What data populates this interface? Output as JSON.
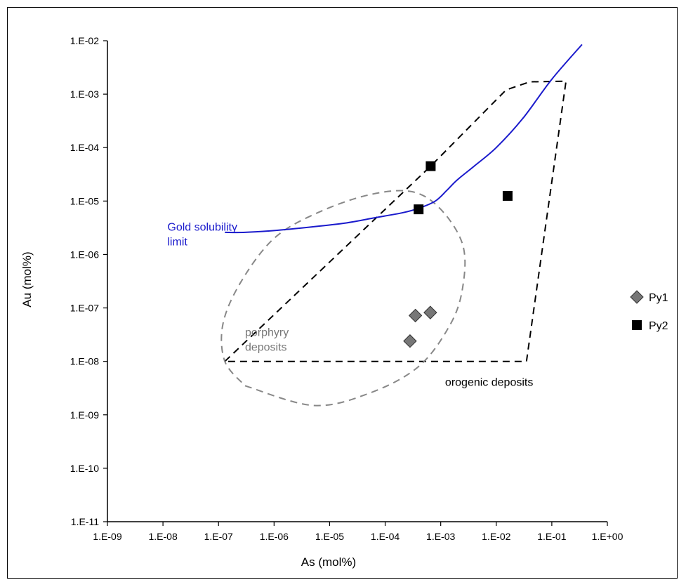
{
  "chart_data": {
    "type": "scatter",
    "title": "",
    "xlabel": "As (mol%)",
    "ylabel": "Au (mol%)",
    "x_scale": "log",
    "y_scale": "log",
    "xlim": [
      1e-09,
      1
    ],
    "ylim": [
      1e-11,
      0.01
    ],
    "grid": false,
    "legend_position": "right",
    "x_ticks": [
      {
        "value": 1e-09,
        "label": "1.E-09"
      },
      {
        "value": 1e-08,
        "label": "1.E-08"
      },
      {
        "value": 1e-07,
        "label": "1.E-07"
      },
      {
        "value": 1e-06,
        "label": "1.E-06"
      },
      {
        "value": 1e-05,
        "label": "1.E-05"
      },
      {
        "value": 0.0001,
        "label": "1.E-04"
      },
      {
        "value": 0.001,
        "label": "1.E-03"
      },
      {
        "value": 0.01,
        "label": "1.E-02"
      },
      {
        "value": 0.1,
        "label": "1.E-01"
      },
      {
        "value": 1,
        "label": "1.E+00"
      }
    ],
    "y_ticks": [
      {
        "value": 1e-11,
        "label": "1.E-11"
      },
      {
        "value": 1e-10,
        "label": "1.E-10"
      },
      {
        "value": 1e-09,
        "label": "1.E-09"
      },
      {
        "value": 1e-08,
        "label": "1.E-08"
      },
      {
        "value": 1e-07,
        "label": "1.E-07"
      },
      {
        "value": 1e-06,
        "label": "1.E-06"
      },
      {
        "value": 1e-05,
        "label": "1.E-05"
      },
      {
        "value": 0.0001,
        "label": "1.E-04"
      },
      {
        "value": 0.001,
        "label": "1.E-03"
      },
      {
        "value": 0.01,
        "label": "1.E-02"
      }
    ],
    "series": [
      {
        "name": "Py1",
        "marker": "diamond",
        "color": "#777777",
        "points": [
          {
            "x": 0.00035,
            "y": 7.2e-08
          },
          {
            "x": 0.00065,
            "y": 8.2e-08
          },
          {
            "x": 0.00028,
            "y": 2.4e-08
          }
        ]
      },
      {
        "name": "Py2",
        "marker": "square",
        "color": "#000000",
        "points": [
          {
            "x": 0.00066,
            "y": 4.5e-05
          },
          {
            "x": 0.0004,
            "y": 7e-06
          },
          {
            "x": 0.016,
            "y": 1.25e-05
          }
        ]
      }
    ],
    "curves": [
      {
        "label": "Gold solubility limit",
        "color": "#1a1acc",
        "points": [
          [
            1.3e-07,
            2.6e-06
          ],
          [
            3e-07,
            2.6e-06
          ],
          [
            1e-06,
            2.8e-06
          ],
          [
            5e-06,
            3.3e-06
          ],
          [
            2e-05,
            3.9e-06
          ],
          [
            6e-05,
            4.8e-06
          ],
          [
            0.0002,
            6e-06
          ],
          [
            0.0004,
            7.3e-06
          ],
          [
            0.0008,
            1e-05
          ],
          [
            0.0013,
            1.6e-05
          ],
          [
            0.002,
            2.5e-05
          ],
          [
            0.004,
            4.5e-05
          ],
          [
            0.01,
            0.0001
          ],
          [
            0.03,
            0.00035
          ],
          [
            0.1,
            0.0019
          ],
          [
            0.35,
            0.0085
          ]
        ]
      }
    ],
    "regions": [
      {
        "label": "orogenic deposits",
        "color": "#000000",
        "points": [
          [
            1.3e-07,
            1e-08
          ],
          [
            0.00066,
            4.5e-05
          ],
          [
            0.015,
            0.0012
          ],
          [
            0.04,
            0.0017
          ],
          [
            0.18,
            0.00175
          ],
          [
            0.035,
            1e-08
          ],
          [
            1.3e-07,
            1e-08
          ]
        ]
      },
      {
        "label": "porphyry deposits",
        "color": "#888888",
        "points": [
          [
            3e-07,
            3.5e-09
          ],
          [
            5e-06,
            1.5e-09
          ],
          [
            5e-05,
            2.5e-09
          ],
          [
            0.0004,
            8e-09
          ],
          [
            0.0015,
            5e-08
          ],
          [
            0.0025,
            2.5e-07
          ],
          [
            0.0025,
            1.5e-06
          ],
          [
            0.001,
            7e-06
          ],
          [
            0.0003,
            1.5e-05
          ],
          [
            5e-05,
            1.3e-05
          ],
          [
            6e-06,
            6e-06
          ],
          [
            1e-06,
            2e-06
          ],
          [
            2.5e-07,
            3e-07
          ],
          [
            1.2e-07,
            5e-08
          ],
          [
            1.3e-07,
            1e-08
          ],
          [
            3e-07,
            3.5e-09
          ]
        ]
      }
    ],
    "annotations": [
      {
        "text": "Gold solubility limit",
        "lines": [
          "Gold solubility",
          "limit"
        ],
        "color": "#1a1acc",
        "x": 1.2e-08,
        "y": 2.8e-06
      },
      {
        "text": "porphyry deposits",
        "lines": [
          "porphyry",
          "deposits"
        ],
        "color": "#777777",
        "x": 3e-07,
        "y": 3e-08
      },
      {
        "text": "orogenic deposits",
        "lines": [
          "orogenic deposits"
        ],
        "color": "#000000",
        "x": 0.0012,
        "y": 3.5e-09
      }
    ]
  }
}
